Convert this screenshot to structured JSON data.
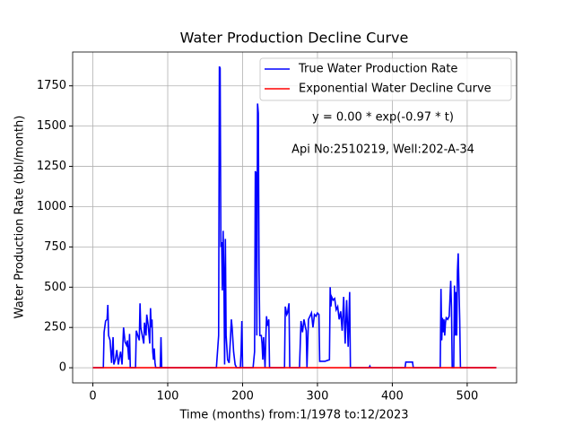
{
  "chart_data": {
    "type": "line",
    "title": "Water Production Decline Curve",
    "x_label": "Time (months) from:1/1978 to:12/2023",
    "y_label": "Water Production Rate (bbl/month)",
    "annotations": [
      "y = 0.00 * exp(-0.97 * t)",
      "Api No:2510219, Well:202-A-34"
    ],
    "xlim": [
      -27,
      566
    ],
    "ylim": [
      -94,
      1960
    ],
    "xticks": [
      0,
      100,
      200,
      300,
      400,
      500
    ],
    "yticks": [
      0,
      250,
      500,
      750,
      1000,
      1250,
      1500,
      1750
    ],
    "grid": true,
    "legend": "upper right",
    "series": [
      {
        "name": "True Water Production Rate",
        "color": "#0000ff",
        "x": [
          0,
          14,
          15,
          17,
          19,
          20,
          21,
          23,
          25,
          27,
          28,
          30,
          32,
          34,
          37,
          39,
          41,
          43,
          45,
          46,
          48,
          49,
          50,
          57,
          58,
          60,
          62,
          63,
          64,
          66,
          68,
          69,
          71,
          72,
          74,
          76,
          77,
          78,
          79,
          80,
          81,
          82,
          83,
          84,
          90,
          91,
          92,
          165,
          168,
          169,
          170,
          171,
          172,
          173,
          174,
          175,
          176,
          177,
          178,
          180,
          182,
          184,
          185,
          186,
          188,
          190,
          192,
          197,
          198,
          199,
          200,
          214,
          216,
          217,
          218,
          219,
          220,
          221,
          222,
          223,
          225,
          226,
          227,
          228,
          230,
          231,
          232,
          233,
          235,
          236,
          256,
          257,
          259,
          260,
          262,
          263,
          276,
          278,
          280,
          282,
          284,
          285,
          286,
          288,
          290,
          292,
          294,
          296,
          298,
          300,
          302,
          303,
          310,
          316,
          317,
          318,
          319,
          321,
          323,
          325,
          327,
          329,
          331,
          333,
          335,
          337,
          339,
          341,
          343,
          344,
          369,
          370,
          371,
          417,
          418,
          427,
          428,
          464,
          465,
          466,
          467,
          468,
          469,
          470,
          471,
          472,
          474,
          476,
          478,
          479,
          480,
          482,
          483,
          484,
          485,
          486,
          487,
          488,
          489,
          490,
          491,
          539
        ],
        "values": [
          0,
          0,
          220,
          290,
          300,
          390,
          200,
          170,
          30,
          190,
          20,
          50,
          110,
          20,
          100,
          20,
          250,
          160,
          140,
          170,
          50,
          210,
          0,
          0,
          230,
          200,
          170,
          400,
          250,
          200,
          150,
          280,
          200,
          330,
          260,
          150,
          370,
          250,
          300,
          100,
          50,
          120,
          30,
          0,
          0,
          190,
          0,
          0,
          200,
          1870,
          1860,
          750,
          780,
          480,
          850,
          580,
          20,
          800,
          200,
          50,
          30,
          200,
          300,
          250,
          100,
          20,
          0,
          0,
          100,
          290,
          0,
          0,
          100,
          1220,
          1210,
          200,
          1640,
          1580,
          600,
          200,
          200,
          150,
          50,
          190,
          0,
          180,
          320,
          260,
          300,
          0,
          0,
          380,
          330,
          340,
          400,
          0,
          0,
          290,
          220,
          300,
          250,
          230,
          0,
          300,
          320,
          340,
          250,
          330,
          320,
          340,
          330,
          40,
          40,
          50,
          500,
          380,
          440,
          420,
          430,
          360,
          380,
          300,
          350,
          230,
          440,
          150,
          420,
          130,
          470,
          0,
          0,
          10,
          0,
          0,
          35,
          35,
          0,
          0,
          490,
          170,
          310,
          220,
          300,
          200,
          280,
          310,
          300,
          320,
          540,
          380,
          0,
          0,
          510,
          200,
          470,
          200,
          600,
          710,
          500,
          300,
          0,
          0
        ]
      },
      {
        "name": "Exponential Water Decline Curve",
        "color": "#ff0000",
        "x": [
          0,
          100,
          200,
          300,
          400,
          539
        ],
        "values": [
          0,
          0,
          0,
          0,
          0,
          0
        ]
      }
    ]
  }
}
